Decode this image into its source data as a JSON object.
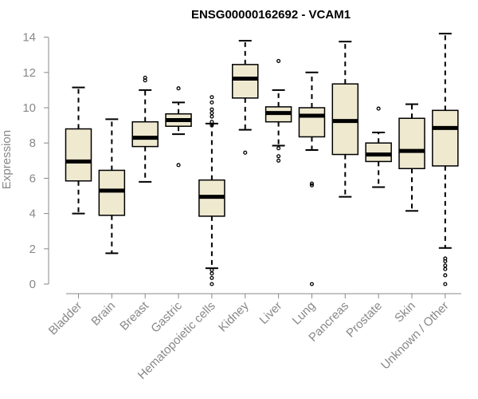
{
  "chart_data": {
    "type": "boxplot",
    "title": "ENSG00000162692 - VCAM1",
    "xlabel": "",
    "ylabel": "Expression",
    "ylim": [
      0,
      14.4
    ],
    "yticks": [
      0,
      2,
      4,
      6,
      8,
      10,
      12,
      14
    ],
    "box_fill": "#efe9d0",
    "categories": [
      "Bladder",
      "Brain",
      "Breast",
      "Gastric",
      "Hematopoietic cells",
      "Kidney",
      "Liver",
      "Lung",
      "Pancreas",
      "Prostate",
      "Skin",
      "Unknown / Other"
    ],
    "boxes": [
      {
        "name": "Bladder",
        "whisker_low": 4.0,
        "q1": 5.85,
        "median": 6.95,
        "q3": 8.8,
        "whisker_high": 11.15,
        "outliers": []
      },
      {
        "name": "Brain",
        "whisker_low": 1.75,
        "q1": 3.9,
        "median": 5.3,
        "q3": 6.45,
        "whisker_high": 9.35,
        "outliers": []
      },
      {
        "name": "Breast",
        "whisker_low": 5.8,
        "q1": 7.8,
        "median": 8.3,
        "q3": 9.2,
        "whisker_high": 11.0,
        "outliers": [
          11.55,
          11.7
        ]
      },
      {
        "name": "Gastric",
        "whisker_low": 8.5,
        "q1": 8.95,
        "median": 9.3,
        "q3": 9.65,
        "whisker_high": 10.3,
        "outliers": [
          11.1,
          6.75
        ]
      },
      {
        "name": "Hematopoietic cells",
        "whisker_low": 0.9,
        "q1": 3.85,
        "median": 4.95,
        "q3": 5.9,
        "whisker_high": 9.1,
        "outliers": [
          10.6,
          10.3,
          9.9,
          9.7,
          9.5,
          9.2,
          9.0,
          0.8,
          0.6,
          0.35,
          0.0
        ]
      },
      {
        "name": "Kidney",
        "whisker_low": 8.75,
        "q1": 10.55,
        "median": 11.65,
        "q3": 12.45,
        "whisker_high": 13.8,
        "outliers": [
          7.45
        ]
      },
      {
        "name": "Liver",
        "whisker_low": 7.85,
        "q1": 9.2,
        "median": 9.7,
        "q3": 10.05,
        "whisker_high": 11.0,
        "outliers": [
          12.65,
          7.7,
          7.25,
          7.0
        ]
      },
      {
        "name": "Lung",
        "whisker_low": 7.6,
        "q1": 8.35,
        "median": 9.55,
        "q3": 10.0,
        "whisker_high": 12.0,
        "outliers": [
          5.7,
          5.6,
          0.0
        ]
      },
      {
        "name": "Pancreas",
        "whisker_low": 4.95,
        "q1": 7.35,
        "median": 9.25,
        "q3": 11.35,
        "whisker_high": 13.75,
        "outliers": []
      },
      {
        "name": "Prostate",
        "whisker_low": 5.5,
        "q1": 6.95,
        "median": 7.35,
        "q3": 8.0,
        "whisker_high": 8.6,
        "outliers": [
          9.95
        ]
      },
      {
        "name": "Skin",
        "whisker_low": 4.15,
        "q1": 6.55,
        "median": 7.55,
        "q3": 9.4,
        "whisker_high": 10.2,
        "outliers": []
      },
      {
        "name": "Unknown / Other",
        "whisker_low": 2.05,
        "q1": 6.7,
        "median": 8.85,
        "q3": 9.85,
        "whisker_high": 14.2,
        "outliers": [
          1.45,
          1.3,
          1.05,
          0.85,
          0.5,
          0.0
        ]
      }
    ]
  }
}
